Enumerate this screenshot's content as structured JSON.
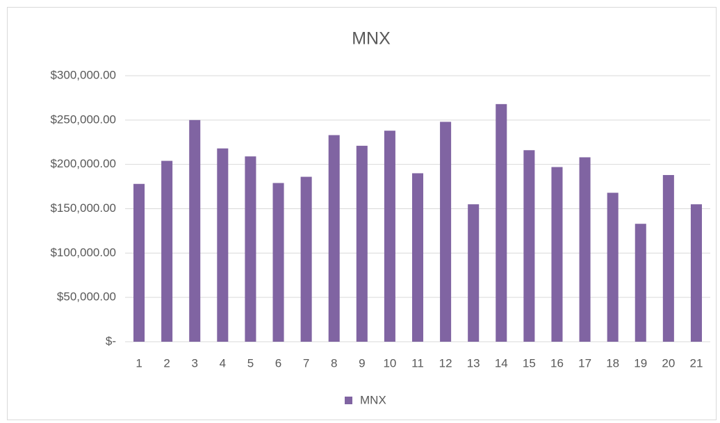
{
  "chart_data": {
    "type": "bar",
    "title": "MNX",
    "categories": [
      "1",
      "2",
      "3",
      "4",
      "5",
      "6",
      "7",
      "8",
      "9",
      "10",
      "11",
      "12",
      "13",
      "14",
      "15",
      "16",
      "17",
      "18",
      "19",
      "20",
      "21"
    ],
    "series": [
      {
        "name": "MNX",
        "color": "#8064a2",
        "values": [
          178000,
          204000,
          250000,
          218000,
          209000,
          179000,
          186000,
          233000,
          221000,
          238000,
          190000,
          248000,
          155000,
          268000,
          216000,
          197000,
          208000,
          168000,
          133000,
          188000,
          155000
        ]
      }
    ],
    "ylim": [
      0,
      300000
    ],
    "yticks": [
      {
        "value": 0,
        "label": "$-"
      },
      {
        "value": 50000,
        "label": "$50,000.00"
      },
      {
        "value": 100000,
        "label": "$100,000.00"
      },
      {
        "value": 150000,
        "label": "$150,000.00"
      },
      {
        "value": 200000,
        "label": "$200,000.00"
      },
      {
        "value": 250000,
        "label": "$250,000.00"
      },
      {
        "value": 300000,
        "label": "$300,000.00"
      }
    ],
    "grid": true,
    "legend": "bottom"
  }
}
